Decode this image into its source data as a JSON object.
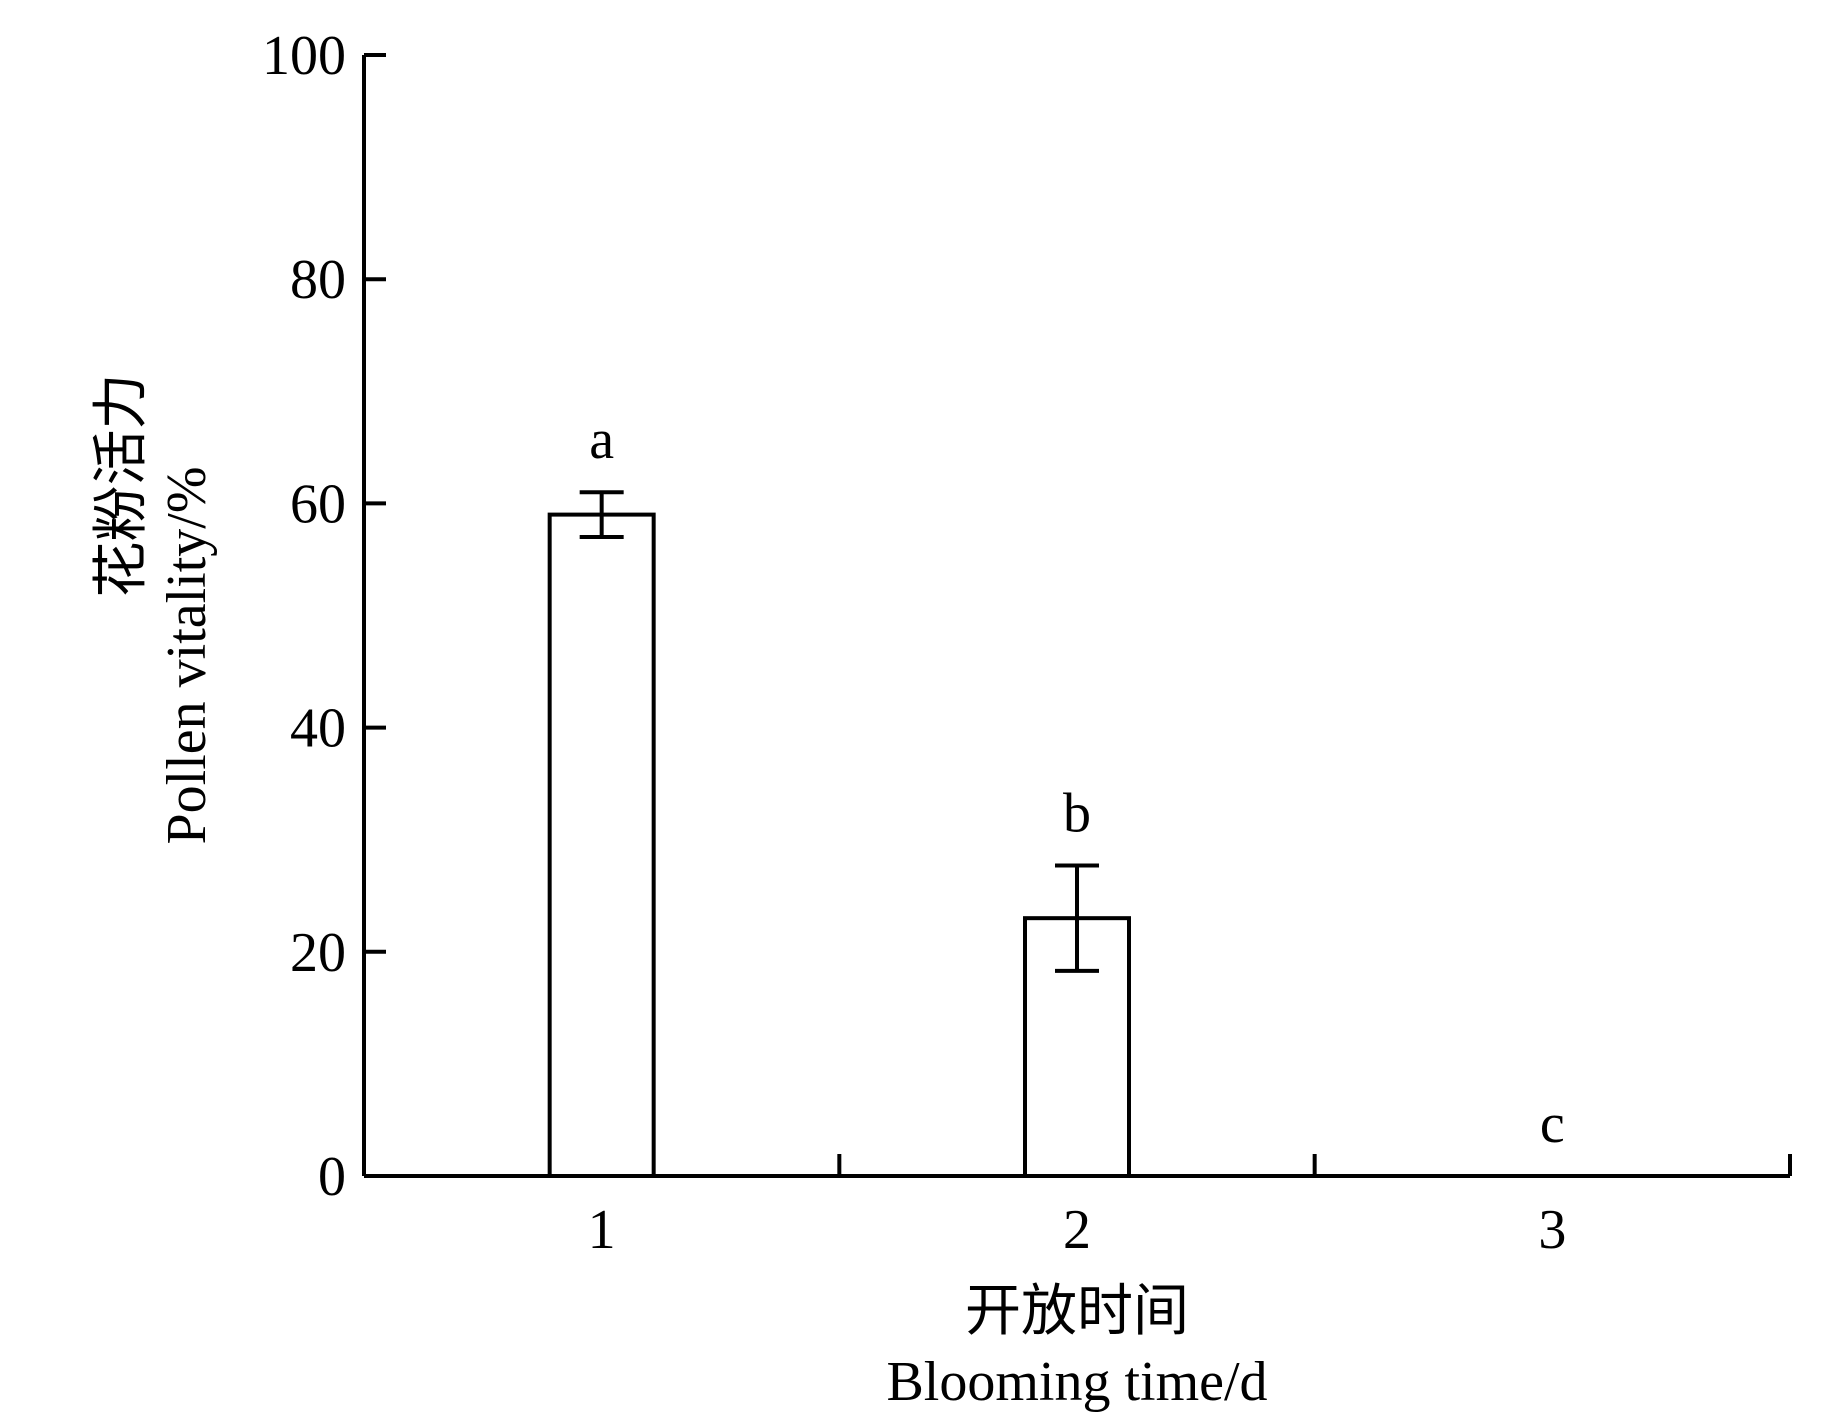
{
  "chart_data": {
    "type": "bar",
    "categories": [
      "1",
      "2",
      "3"
    ],
    "values": [
      59,
      23,
      0
    ],
    "errors": [
      2,
      4.7,
      0
    ],
    "significance_letters": [
      "a",
      "b",
      "c"
    ],
    "xlabel_cn": "开放时间",
    "xlabel_en": "Blooming time/d",
    "ylabel_cn": "花粉活力",
    "ylabel_en": "Pollen vitality/%",
    "ylim": [
      0,
      100
    ],
    "yticks": [
      0,
      20,
      40,
      60,
      80,
      100
    ],
    "grid": false,
    "bar_fill": "#ffffff",
    "bar_stroke": "#000000"
  }
}
